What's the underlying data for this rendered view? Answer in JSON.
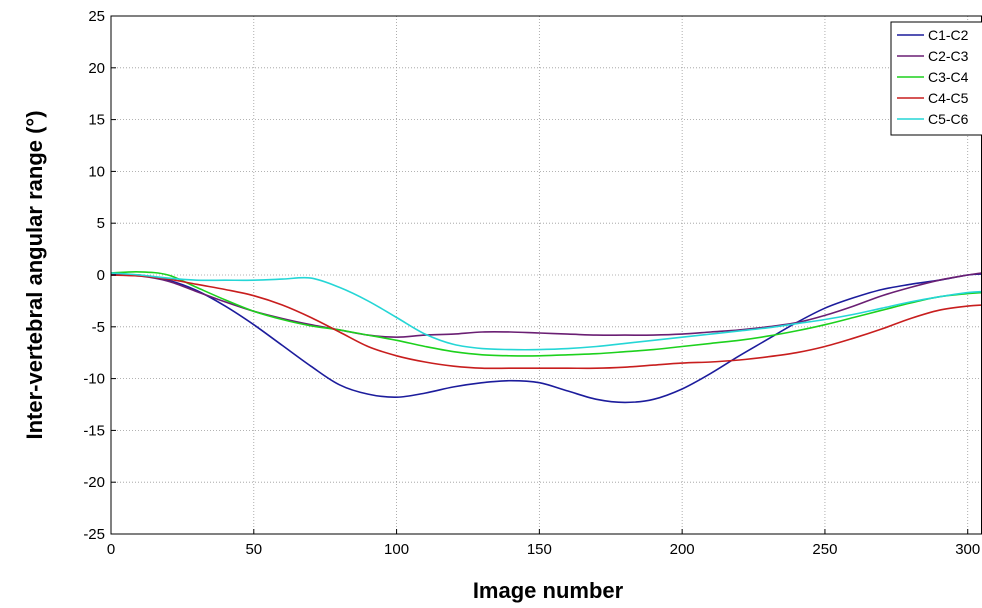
{
  "chart_data": {
    "type": "line",
    "title": "",
    "xlabel": "Image number",
    "ylabel": "Inter-vertebral angular range (°)",
    "xlim": [
      0,
      305
    ],
    "ylim": [
      -25,
      25
    ],
    "xticks": [
      0,
      50,
      100,
      150,
      200,
      250,
      300
    ],
    "yticks": [
      25,
      20,
      15,
      10,
      5,
      0,
      -5,
      -10,
      -15,
      -20,
      -25
    ],
    "grid": true,
    "legend_position": "top-right",
    "x": [
      0,
      10,
      20,
      30,
      40,
      50,
      60,
      70,
      80,
      90,
      100,
      110,
      120,
      130,
      140,
      150,
      160,
      170,
      180,
      190,
      200,
      210,
      220,
      230,
      240,
      250,
      260,
      270,
      280,
      290,
      300,
      305
    ],
    "series": [
      {
        "name": "C1-C2",
        "color": "#1c1c9c",
        "values": [
          0,
          0,
          -0.5,
          -1.5,
          -3.0,
          -4.8,
          -6.8,
          -8.8,
          -10.6,
          -11.5,
          -11.8,
          -11.4,
          -10.8,
          -10.4,
          -10.2,
          -10.4,
          -11.2,
          -12.0,
          -12.3,
          -12.0,
          -11.0,
          -9.5,
          -7.8,
          -6.2,
          -4.6,
          -3.2,
          -2.2,
          -1.4,
          -0.9,
          -0.5,
          0,
          0.1
        ]
      },
      {
        "name": "C2-C3",
        "color": "#6a1f73",
        "values": [
          0,
          -0.1,
          -0.6,
          -1.6,
          -2.6,
          -3.5,
          -4.2,
          -4.8,
          -5.3,
          -5.8,
          -6.0,
          -5.8,
          -5.7,
          -5.5,
          -5.5,
          -5.6,
          -5.7,
          -5.8,
          -5.8,
          -5.8,
          -5.7,
          -5.5,
          -5.3,
          -5.0,
          -4.6,
          -3.9,
          -3.0,
          -2.0,
          -1.2,
          -0.5,
          0,
          0.2
        ]
      },
      {
        "name": "C3-C4",
        "color": "#1dd11d",
        "values": [
          0.2,
          0.3,
          0,
          -1.2,
          -2.4,
          -3.5,
          -4.3,
          -4.9,
          -5.3,
          -5.8,
          -6.3,
          -6.9,
          -7.4,
          -7.7,
          -7.8,
          -7.8,
          -7.7,
          -7.6,
          -7.4,
          -7.2,
          -6.9,
          -6.6,
          -6.3,
          -5.9,
          -5.4,
          -4.8,
          -4.1,
          -3.4,
          -2.7,
          -2.1,
          -1.8,
          -1.7
        ]
      },
      {
        "name": "C4-C5",
        "color": "#c81e1e",
        "values": [
          0,
          -0.1,
          -0.4,
          -0.9,
          -1.4,
          -2.0,
          -2.9,
          -4.1,
          -5.5,
          -6.9,
          -7.8,
          -8.4,
          -8.8,
          -9.0,
          -9.0,
          -9.0,
          -9.0,
          -9.0,
          -8.9,
          -8.7,
          -8.5,
          -8.4,
          -8.2,
          -7.9,
          -7.5,
          -6.9,
          -6.1,
          -5.2,
          -4.2,
          -3.4,
          -3.0,
          -2.9
        ]
      },
      {
        "name": "C5-C6",
        "color": "#25d6d6",
        "values": [
          0.2,
          0,
          -0.3,
          -0.5,
          -0.5,
          -0.5,
          -0.4,
          -0.3,
          -1.2,
          -2.5,
          -4.1,
          -5.7,
          -6.7,
          -7.1,
          -7.2,
          -7.2,
          -7.1,
          -6.9,
          -6.6,
          -6.3,
          -6.0,
          -5.7,
          -5.4,
          -5.1,
          -4.7,
          -4.3,
          -3.8,
          -3.2,
          -2.6,
          -2.1,
          -1.7,
          -1.6
        ]
      }
    ]
  }
}
